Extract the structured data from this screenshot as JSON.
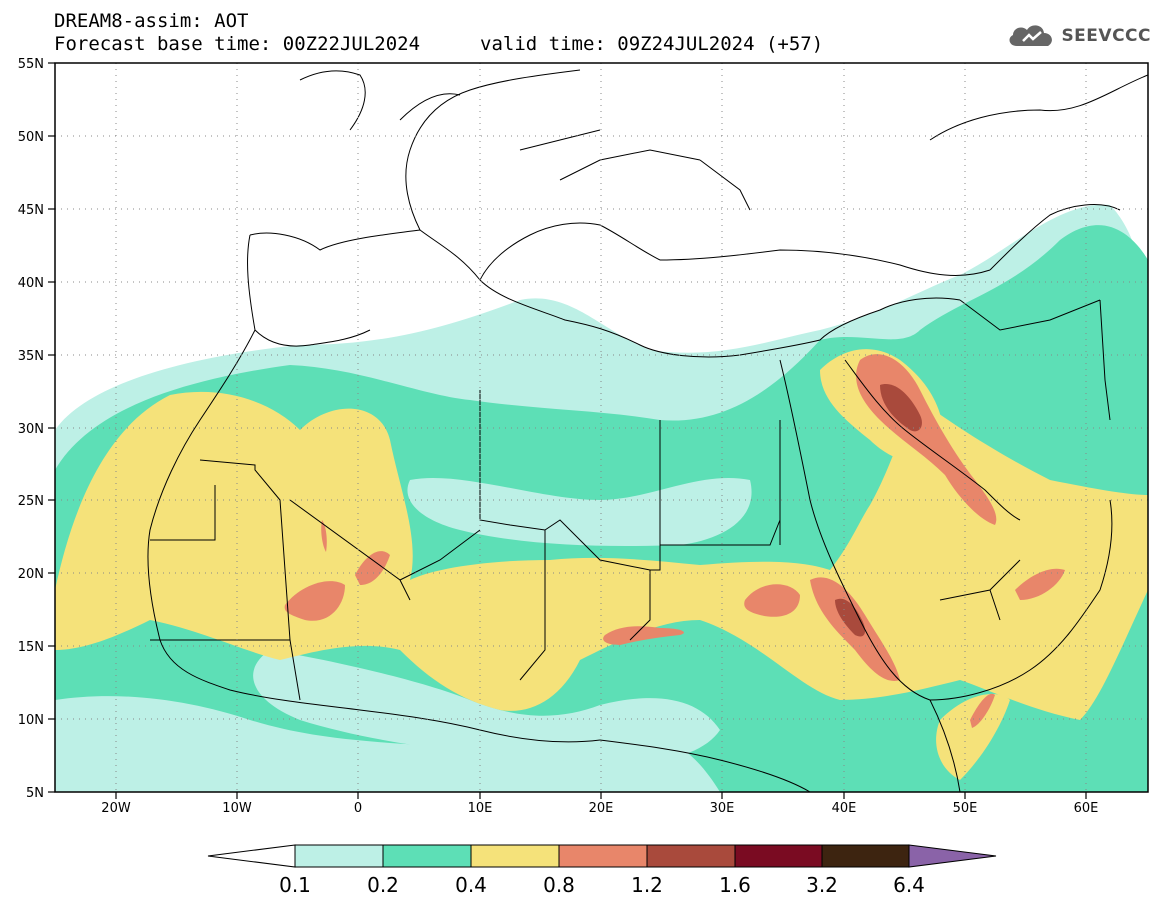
{
  "header": {
    "line1": "DREAM8-assim: AOT",
    "base_time": "Forecast base time: 00Z22JUL2024",
    "valid_time": "valid time: 09Z24JUL2024 (+57)",
    "logo_text": "SEEVCCC"
  },
  "map": {
    "lon_range": [
      -25,
      65
    ],
    "lat_range": [
      5,
      55
    ],
    "lat_ticks": [
      "55N",
      "50N",
      "45N",
      "40N",
      "35N",
      "30N",
      "25N",
      "20N",
      "15N",
      "10N",
      "5N"
    ],
    "lon_ticks": [
      "20W",
      "10W",
      "0",
      "10E",
      "20E",
      "30E",
      "40E",
      "50E",
      "60E"
    ],
    "land_outline_color": "#000000",
    "gridline_style": "dotted"
  },
  "colorbar": {
    "labels": [
      "0.1",
      "0.2",
      "0.4",
      "0.8",
      "1.2",
      "1.6",
      "3.2",
      "6.4"
    ],
    "colors": [
      "#ffffff",
      "#bdf0e6",
      "#5ddfb6",
      "#f5e27a",
      "#e8866a",
      "#a94a3c",
      "#7a0b22",
      "#3d2410",
      "#8a63a8"
    ]
  }
}
